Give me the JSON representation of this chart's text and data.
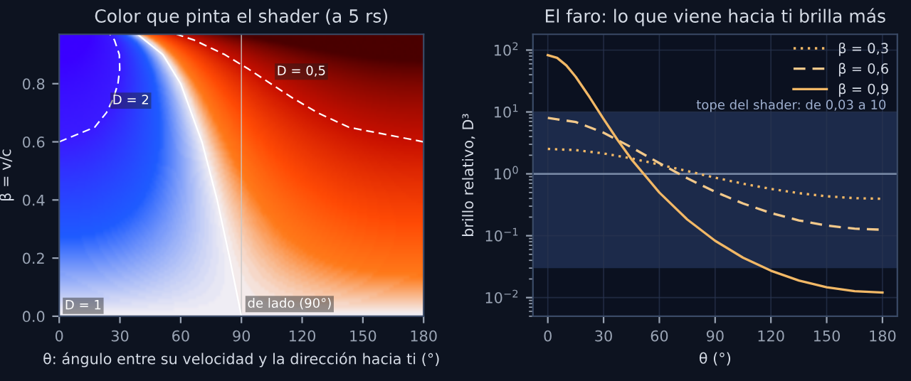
{
  "chart_data": [
    {
      "type": "line",
      "title": "Color que pinta el shader (a 5 rs)",
      "xlabel": "θ: ángulo entre su velocidad y la dirección hacia ti (°)",
      "ylabel": "β = v/c",
      "xlim": [
        0,
        180
      ],
      "xticks": [
        0,
        30,
        60,
        90,
        120,
        150,
        180
      ],
      "ylim": [
        0,
        0.97
      ],
      "yticks": [
        {
          "value": 0,
          "label": "0.0"
        },
        {
          "value": 0.2,
          "label": "0.2"
        },
        {
          "value": 0.4,
          "label": "0.4"
        },
        {
          "value": 0.6,
          "label": "0.6"
        },
        {
          "value": 0.8,
          "label": "0.8"
        }
      ],
      "grid": false,
      "legend": false,
      "series": [
        {
          "color": "#ffffff",
          "line_style": "dashed",
          "x": [
            0,
            17.5,
            23.3,
            26.8,
            29.0,
            29.9,
            29.7,
            27.3,
            25.1
          ],
          "values": [
            0.6,
            0.65,
            0.7,
            0.75,
            0.8,
            0.85,
            0.9,
            0.95,
            0.97
          ]
        },
        {
          "color": "#ffffff",
          "line_style": "dashed",
          "x": [
            180,
            143.1,
            127.7,
            115.5,
            104.5,
            93.6,
            81.8,
            66.7,
            58.0
          ],
          "values": [
            0.6,
            0.65,
            0.7,
            0.75,
            0.8,
            0.85,
            0.9,
            0.95,
            0.97
          ]
        },
        {
          "color": "#ffffff",
          "line_style": "solid",
          "x": [
            90,
            84.2,
            78.0,
            70.5,
            60.0,
            51.2,
            38.7
          ],
          "values": [
            0.0,
            0.2,
            0.4,
            0.6,
            0.8,
            0.9,
            0.97
          ]
        }
      ],
      "ref_lines": [
        {
          "axis": "x",
          "value": 90,
          "color": "#c8c8c8"
        }
      ],
      "annotations": [
        {
          "text": "D = 2",
          "x": 23.3,
          "y": 0.7
        },
        {
          "text": "D = 0,5",
          "x": 104.5,
          "y": 0.8
        },
        {
          "text": "de lado (90°)",
          "x": 90,
          "y": 0.0
        },
        "D = 1"
      ]
    },
    {
      "type": "line",
      "title": "El faro: lo que viene hacia ti brilla más",
      "xlabel": "θ (°)",
      "ylabel": "brillo relativo, D³",
      "log": "y",
      "xlim": [
        -8,
        188
      ],
      "xticks": [
        0,
        30,
        60,
        90,
        120,
        150,
        180
      ],
      "ylim": [
        0.005,
        180
      ],
      "yticks": [
        {
          "value": 0.01,
          "label": "10$^{−2}$"
        },
        {
          "value": 0.1,
          "label": "10$^{−1}$"
        },
        {
          "value": 1,
          "label": "10$^{0}$"
        },
        {
          "value": 10,
          "label": "10$^{1}$"
        },
        {
          "value": 100,
          "label": "10$^{2}$"
        }
      ],
      "grid": true,
      "legend": "top right",
      "series": [
        {
          "name": "β = 0,3",
          "color": "#f2b866",
          "line_style": "dotted",
          "x": [
            0,
            15,
            30,
            45,
            60,
            75,
            90,
            105,
            120,
            135,
            150,
            165,
            180
          ],
          "values": [
            2.53,
            2.42,
            2.14,
            1.78,
            1.41,
            1.11,
            0.868,
            0.693,
            0.571,
            0.487,
            0.434,
            0.405,
            0.395
          ]
        },
        {
          "name": "β = 0,6",
          "color": "#f2c88a",
          "line_style": "dashed",
          "x": [
            0,
            15,
            30,
            45,
            60,
            75,
            90,
            105,
            120,
            135,
            150,
            165,
            180
          ],
          "values": [
            8.0,
            6.89,
            4.62,
            2.68,
            1.49,
            0.849,
            0.512,
            0.332,
            0.233,
            0.177,
            0.146,
            0.13,
            0.125
          ]
        },
        {
          "name": "β = 0,9",
          "color": "#f2b866",
          "line_style": "solid",
          "x": [
            0,
            5,
            10,
            15,
            22.5,
            30,
            37.5,
            45,
            60,
            75,
            90,
            105,
            120,
            135,
            150,
            165,
            180
          ],
          "values": [
            82.8,
            74.9,
            56.4,
            37.1,
            17.3,
            7.72,
            3.54,
            1.72,
            0.498,
            0.183,
            0.0828,
            0.0442,
            0.0272,
            0.0189,
            0.0147,
            0.0127,
            0.0121
          ]
        }
      ],
      "ref_lines": [
        {
          "axis": "y",
          "value": 1,
          "color": "#8a9bb8"
        }
      ],
      "bands": [
        {
          "axis": "y",
          "from": 0.03,
          "to": 10,
          "label": "tope del shader: de 0,03 a 10",
          "color": "#1e2d4f"
        }
      ]
    }
  ]
}
